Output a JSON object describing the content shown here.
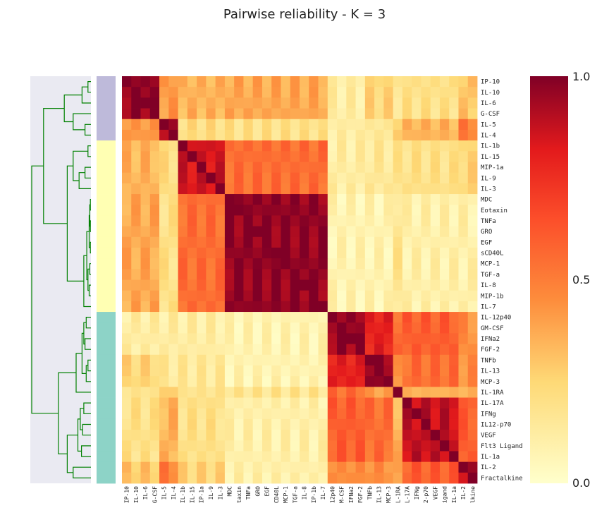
{
  "chart_data": {
    "type": "heatmap",
    "title": "Pairwise reliability - K = 3",
    "labels": [
      "IP-10",
      "IL-10",
      "IL-6",
      "G-CSF",
      "IL-5",
      "IL-4",
      "IL-1b",
      "IL-15",
      "MIP-1a",
      "IL-9",
      "IL-3",
      "MDC",
      "Eotaxin",
      "TNFa",
      "GRO",
      "EGF",
      "sCD40L",
      "MCP-1",
      "TGF-a",
      "IL-8",
      "MIP-1b",
      "IL-7",
      "IL-12p40",
      "GM-CSF",
      "IFNa2",
      "FGF-2",
      "TNFb",
      "IL-13",
      "MCP-3",
      "IL-1RA",
      "IL-17A",
      "IFNg",
      "IL12-p70",
      "VEGF",
      "Flt3 Ligand",
      "IL-1a",
      "IL-2",
      "Fractalkine"
    ],
    "col_labels_shown": [
      "IP-10",
      "IL-10",
      "IL-6",
      "G-CSF",
      "IL-5",
      "IL-4",
      "IL-1b",
      "IL-15",
      "IP-1a",
      "IL-9",
      "IL-3",
      "MDC",
      "taxin",
      "TNFa",
      "GRO",
      "EGF",
      "CD40L",
      "MCP-1",
      "TGF-a",
      "IL-8",
      "IP-1b",
      "IL-7",
      "12p40",
      "M-CSF",
      "IFNa2",
      "FGF-2",
      "TNFb",
      "IL-13",
      "MCP-3",
      "L-1RA",
      "L-17A",
      "IFNg",
      "2-p70",
      "VEGF",
      "igand",
      "IL-1a",
      "IL-2",
      "lkine"
    ],
    "clusters": [
      0,
      0,
      0,
      0,
      0,
      0,
      1,
      1,
      1,
      1,
      1,
      1,
      1,
      1,
      1,
      1,
      1,
      1,
      1,
      1,
      1,
      1,
      2,
      2,
      2,
      2,
      2,
      2,
      2,
      2,
      2,
      2,
      2,
      2,
      2,
      2,
      2,
      2
    ],
    "cluster_colors": [
      "#bebada",
      "#ffffb3",
      "#8dd3c7"
    ],
    "colorbar": {
      "min": 0.0,
      "max": 1.0,
      "ticks": [
        "0.0",
        "0.5",
        "1.0"
      ]
    },
    "colormap": "YlOrRd",
    "dendrogram_color": "#008000"
  }
}
